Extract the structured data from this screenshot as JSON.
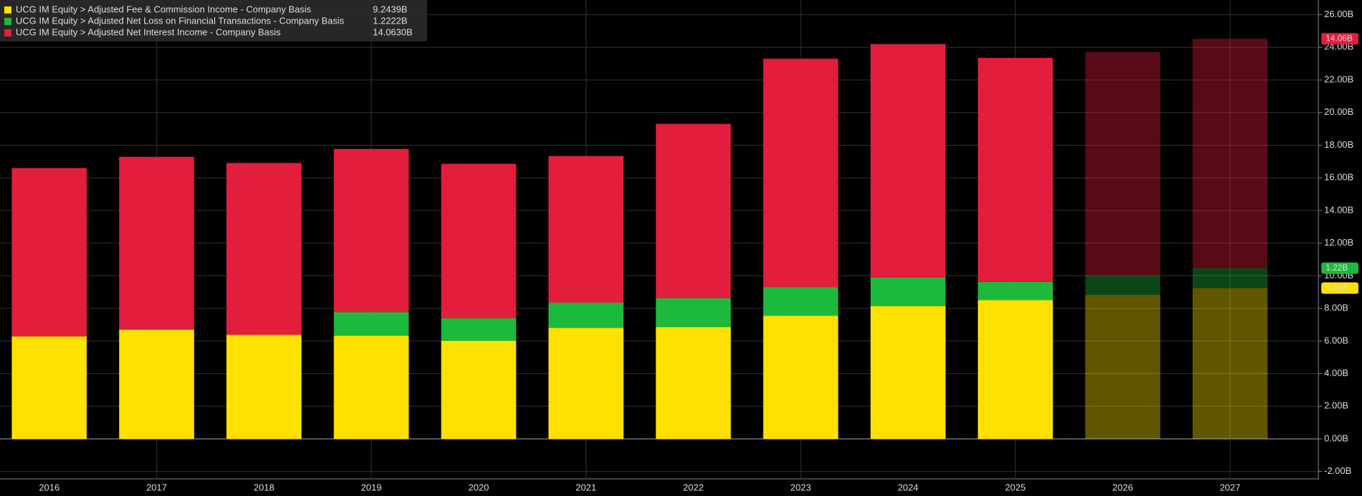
{
  "chart_data": {
    "type": "stacked_bar",
    "categories": [
      "2016",
      "2017",
      "2018",
      "2019",
      "2020",
      "2021",
      "2022",
      "2023",
      "2024",
      "2025",
      "2026",
      "2027"
    ],
    "series": [
      {
        "name": "UCG IM Equity > Adjusted Fee & Commission Income - Company Basis",
        "color": "#ffe100",
        "values": [
          6.28,
          6.7,
          6.38,
          6.33,
          6.01,
          6.81,
          6.86,
          7.55,
          8.14,
          8.51,
          8.83,
          9.2439
        ],
        "legend_value": "9.2439B",
        "tag": "9.24B"
      },
      {
        "name": "UCG IM Equity > Adjusted Net Loss on Financial Transactions - Company Basis",
        "color": "#1db93c",
        "values": [
          null,
          null,
          null,
          1.44,
          1.38,
          1.54,
          1.76,
          1.76,
          1.75,
          1.12,
          1.17,
          1.2222
        ],
        "legend_value": "1.2222B",
        "tag": "1.22B"
      },
      {
        "name": "UCG IM Equity > Adjusted Net Interest Income - Company Basis",
        "color": "#e31e3c",
        "values": [
          10.32,
          10.59,
          10.53,
          10.0,
          9.47,
          8.99,
          10.69,
          13.99,
          14.31,
          13.72,
          13.72,
          14.063
        ],
        "legend_value": "14.0630B",
        "tag": "14.06B"
      }
    ],
    "dimmed": [
      false,
      false,
      false,
      false,
      false,
      false,
      false,
      false,
      false,
      false,
      true,
      true
    ],
    "ylim": [
      -2.45,
      26.9
    ],
    "yticks": [
      {
        "value": -2,
        "label": "-2.00B"
      },
      {
        "value": 0,
        "label": "0.00B"
      },
      {
        "value": 2,
        "label": "2.00B"
      },
      {
        "value": 4,
        "label": "4.00B"
      },
      {
        "value": 6,
        "label": "6.00B"
      },
      {
        "value": 8,
        "label": "8.00B"
      },
      {
        "value": 10,
        "label": "10.00B"
      },
      {
        "value": 12,
        "label": "12.00B"
      },
      {
        "value": 14,
        "label": "14.00B"
      },
      {
        "value": 16,
        "label": "16.00B"
      },
      {
        "value": 18,
        "label": "18.00B"
      },
      {
        "value": 20,
        "label": "20.00B"
      },
      {
        "value": 22,
        "label": "22.00B"
      },
      {
        "value": 24,
        "label": "24.00B"
      },
      {
        "value": 26,
        "label": "26.00B"
      }
    ],
    "grid": true
  }
}
